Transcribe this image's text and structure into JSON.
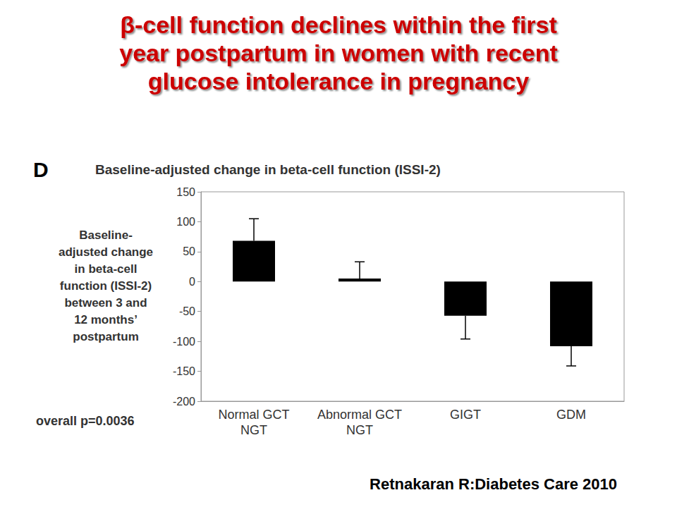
{
  "chart_data": {
    "type": "bar",
    "title": "β-cell function declines within the first\nyear postpartum in women with recent\nglucose intolerance in pregnancy",
    "subtitle": "Baseline-adjusted change in beta-cell function (ISSI-2)",
    "y_label": "Baseline-\nadjusted change\nin beta-cell\nfunction (ISSI-2)\nbetween 3 and\n12 months’\npostpartum",
    "annotations": [
      "D",
      "overall p=0.0036",
      "Retnakaran R:Diabetes Care 2010"
    ],
    "categories": [
      "Normal GCT\nNGT",
      "Abnormal GCT\nNGT",
      "GIGT",
      "GDM"
    ],
    "values": [
      68,
      5,
      -57,
      -108
    ],
    "errors": [
      37,
      28,
      39,
      33
    ],
    "color": "#000000",
    "ylim": [
      -200,
      150
    ],
    "yticks": [
      -200,
      -150,
      -100,
      -50,
      0,
      50,
      100,
      150
    ],
    "grid": false
  }
}
